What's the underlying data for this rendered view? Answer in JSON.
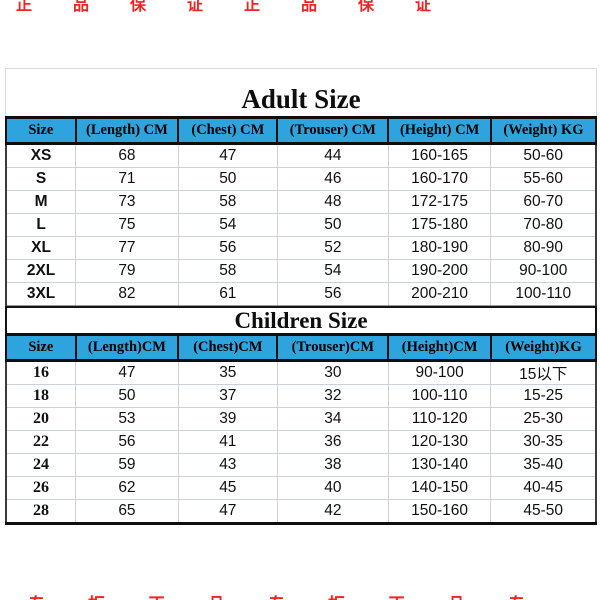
{
  "image_background": "#ffffff",
  "colors": {
    "header_bg": "#2ea4de",
    "header_text": "#000000",
    "grid_light": "#ccd0d7",
    "grid_dark": "#0e0e0e",
    "watermark_red": "#f41111"
  },
  "watermark": {
    "top_fragments": "正品保证正品保证",
    "bottom_fragments": "专柜正品专柜正品专"
  },
  "chart_data": [
    {
      "type": "table",
      "title": "Adult Size",
      "columns": [
        "Size",
        "(Length） CM",
        "（Chest） CM",
        "（Trouser） CM",
        "（Height） CM",
        "（Weight） KG"
      ],
      "rows": [
        [
          "XS",
          "68",
          "47",
          "44",
          "160-165",
          "50-60"
        ],
        [
          "S",
          "71",
          "50",
          "46",
          "160-170",
          "55-60"
        ],
        [
          "M",
          "73",
          "58",
          "48",
          "172-175",
          "60-70"
        ],
        [
          "L",
          "75",
          "54",
          "50",
          "175-180",
          "70-80"
        ],
        [
          "XL",
          "77",
          "56",
          "52",
          "180-190",
          "80-90"
        ],
        [
          "2XL",
          "79",
          "58",
          "54",
          "190-200",
          "90-100"
        ],
        [
          "3XL",
          "82",
          "61",
          "56",
          "200-210",
          "100-110"
        ]
      ]
    },
    {
      "type": "table",
      "title": "Children Size",
      "columns": [
        "Size",
        "(Length)CM",
        "(Chest)CM",
        "(Trouser)CM",
        "(Height)CM",
        "(Weight)KG"
      ],
      "rows": [
        [
          "16",
          "47",
          "35",
          "30",
          "90-100",
          "15以下"
        ],
        [
          "18",
          "50",
          "37",
          "32",
          "100-110",
          "15-25"
        ],
        [
          "20",
          "53",
          "39",
          "34",
          "110-120",
          "25-30"
        ],
        [
          "22",
          "56",
          "41",
          "36",
          "120-130",
          "30-35"
        ],
        [
          "24",
          "59",
          "43",
          "38",
          "130-140",
          "35-40"
        ],
        [
          "26",
          "62",
          "45",
          "40",
          "140-150",
          "40-45"
        ],
        [
          "28",
          "65",
          "47",
          "42",
          "150-160",
          "45-50"
        ]
      ]
    }
  ],
  "column_widths_percent": [
    11.8,
    17.4,
    16.8,
    18.8,
    17.4,
    17.8
  ]
}
